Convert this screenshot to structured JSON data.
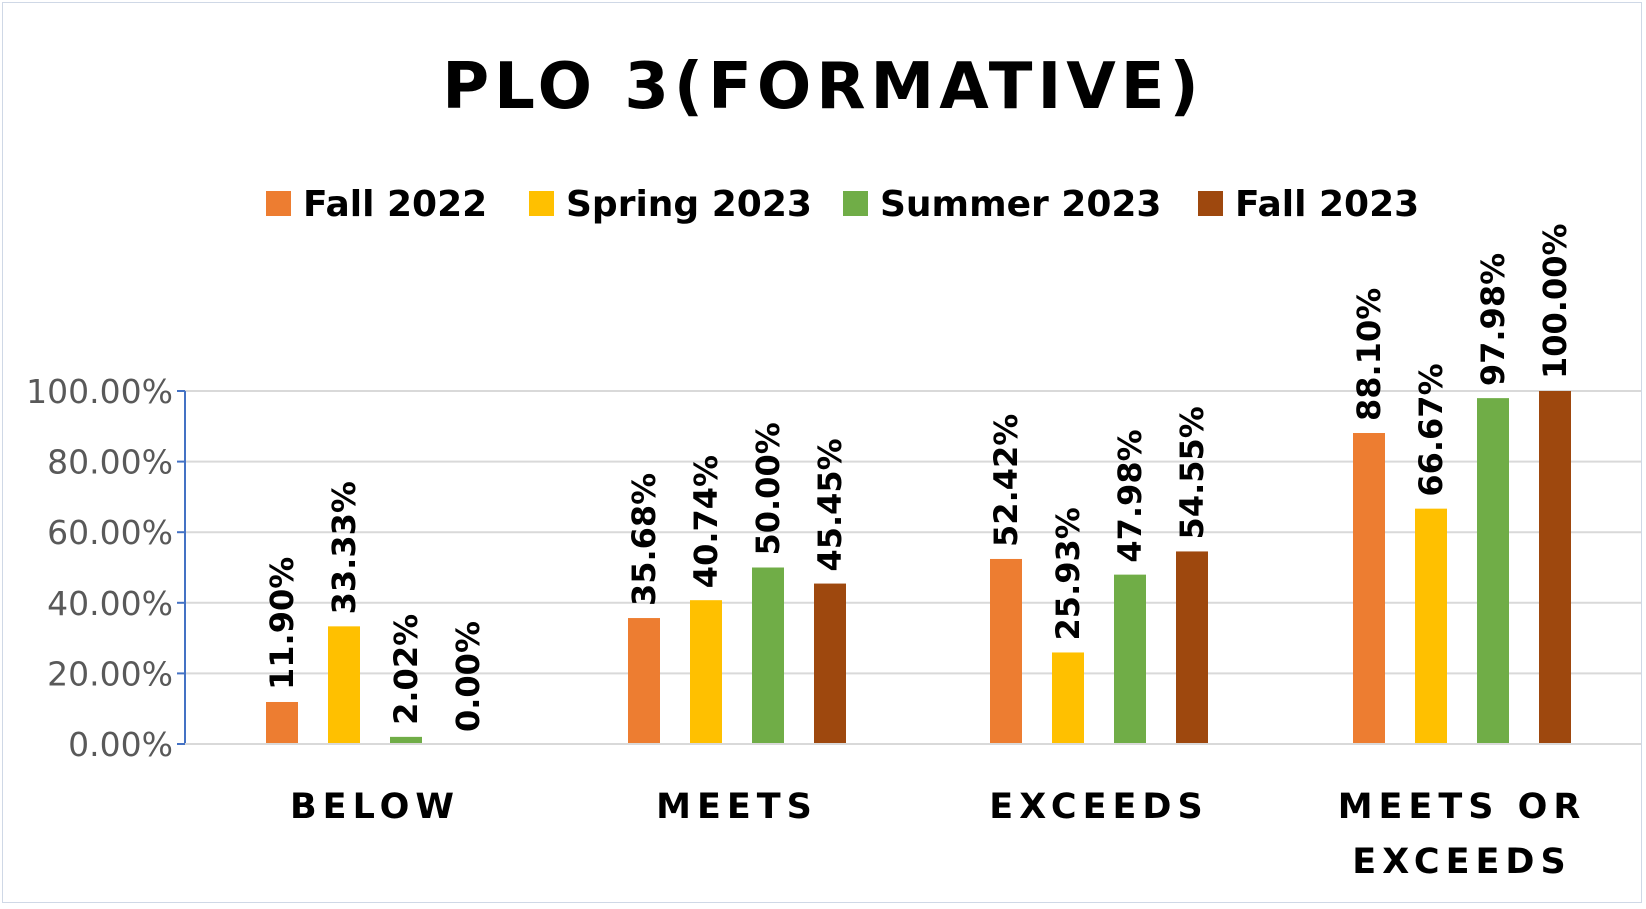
{
  "chart_data": {
    "type": "bar",
    "title": "PLO 3(FORMATIVE)",
    "categories": [
      "BELOW",
      "MEETS",
      "EXCEEDS",
      "MEETS OR EXCEEDS"
    ],
    "series": [
      {
        "name": "Fall 2022",
        "color": "#ED7D31",
        "values": [
          11.9,
          35.68,
          52.42,
          88.1
        ],
        "labels": [
          "11.90%",
          "35.68%",
          "52.42%",
          "88.10%"
        ]
      },
      {
        "name": "Spring 2023",
        "color": "#FFC000",
        "values": [
          33.33,
          40.74,
          25.93,
          66.67
        ],
        "labels": [
          "33.33%",
          "40.74%",
          "25.93%",
          "66.67%"
        ]
      },
      {
        "name": "Summer 2023",
        "color": "#70AD47",
        "values": [
          2.02,
          50.0,
          47.98,
          97.98
        ],
        "labels": [
          "2.02%",
          "50.00%",
          "47.98%",
          "97.98%"
        ]
      },
      {
        "name": "Fall 2023",
        "color": "#9E480E",
        "values": [
          0.0,
          45.45,
          54.55,
          100.0
        ],
        "labels": [
          "0.00%",
          "45.45%",
          "54.55%",
          "100.00%"
        ]
      }
    ],
    "yticks": [
      "0.00%",
      "20.00%",
      "40.00%",
      "60.00%",
      "80.00%",
      "100.00%"
    ],
    "ylim": [
      0,
      100
    ],
    "grid": true,
    "legend_position": "top",
    "axis_color": "#4472C4",
    "grid_color": "#D9D9D9"
  }
}
